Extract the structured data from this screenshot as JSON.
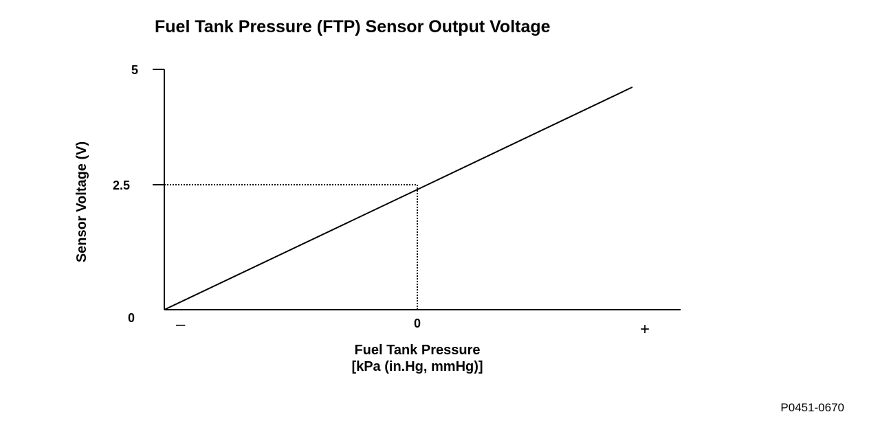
{
  "chart_data": {
    "type": "line",
    "title": "Fuel Tank Pressure (FTP) Sensor Output Voltage",
    "ylabel": "Sensor Voltage (V)",
    "xlabel": "Fuel Tank Pressure",
    "xlabel_units": "[kPa (in.Hg, mmHg)]",
    "y_ticks": [
      "0",
      "2.5",
      "5"
    ],
    "x_tick": "0",
    "x_negative_marker": "–",
    "x_positive_marker": "+",
    "ylim": [
      0,
      5
    ],
    "xlim": [
      -1,
      1.2
    ],
    "series": [
      {
        "x": [
          -1,
          0,
          0.85
        ],
        "y": [
          0,
          2.5,
          4.63
        ]
      }
    ],
    "reference_point": {
      "x": 0,
      "y": 2.5
    },
    "grid": false,
    "legend": "none"
  },
  "figure_code": "P0451-0670"
}
